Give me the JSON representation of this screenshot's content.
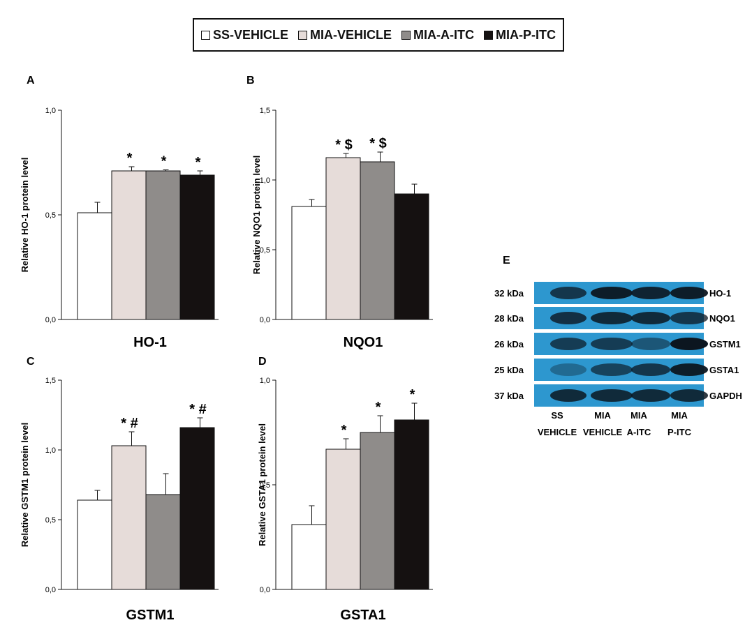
{
  "legend": [
    {
      "label": "SS-VEHICLE",
      "color": "#ffffff"
    },
    {
      "label": "MIA-VEHICLE",
      "color": "#e6dcd9"
    },
    {
      "label": "MIA-A-ITC",
      "color": "#8f8c8a"
    },
    {
      "label": "MIA-P-ITC",
      "color": "#151111"
    }
  ],
  "chart_data": [
    {
      "type": "bar",
      "panel_letter": "A",
      "title": "HO-1",
      "ylabel": "Relative HO-1 protein level",
      "ylim": [
        0,
        1.0
      ],
      "yticks": [
        "0,0",
        "0,5",
        "1,0"
      ],
      "categories": [
        "SS-VEHICLE",
        "MIA-VEHICLE",
        "MIA-A-ITC",
        "MIA-P-ITC"
      ],
      "values": [
        0.51,
        0.71,
        0.71,
        0.69
      ],
      "errors": [
        0.05,
        0.02,
        0.005,
        0.02
      ],
      "annotations": [
        "",
        "*",
        "*",
        "*"
      ]
    },
    {
      "type": "bar",
      "panel_letter": "B",
      "title": "NQO1",
      "ylabel": "Relative NQO1 protein level",
      "ylim": [
        0,
        1.5
      ],
      "yticks": [
        "0,0",
        "0,5",
        "1,0",
        "1,5"
      ],
      "categories": [
        "SS-VEHICLE",
        "MIA-VEHICLE",
        "MIA-A-ITC",
        "MIA-P-ITC"
      ],
      "values": [
        0.81,
        1.16,
        1.13,
        0.9
      ],
      "errors": [
        0.05,
        0.03,
        0.07,
        0.07
      ],
      "annotations": [
        "",
        "*$",
        "*$",
        ""
      ]
    },
    {
      "type": "bar",
      "panel_letter": "C",
      "title": "GSTM1",
      "ylabel": "Relative GSTM1 protein level",
      "ylim": [
        0,
        1.5
      ],
      "yticks": [
        "0,0",
        "0,5",
        "1,0",
        "1,5"
      ],
      "categories": [
        "SS-VEHICLE",
        "MIA-VEHICLE",
        "MIA-A-ITC",
        "MIA-P-ITC"
      ],
      "values": [
        0.64,
        1.03,
        0.68,
        1.16
      ],
      "errors": [
        0.07,
        0.1,
        0.15,
        0.07
      ],
      "annotations": [
        "",
        "*#",
        "",
        "*#"
      ]
    },
    {
      "type": "bar",
      "panel_letter": "D",
      "title": "GSTA1",
      "ylabel": "Relative GSTA1 protein level",
      "ylim": [
        0,
        1.0
      ],
      "yticks": [
        "0,0",
        "0,5",
        "1,0"
      ],
      "categories": [
        "SS-VEHICLE",
        "MIA-VEHICLE",
        "MIA-A-ITC",
        "MIA-P-ITC"
      ],
      "values": [
        0.31,
        0.67,
        0.75,
        0.81
      ],
      "errors": [
        0.09,
        0.05,
        0.08,
        0.08
      ],
      "annotations": [
        "",
        "*",
        "*",
        "*"
      ]
    }
  ],
  "blot": {
    "panel_letter": "E",
    "rows": [
      {
        "kda": "32 kDa",
        "protein": "HO-1"
      },
      {
        "kda": "28 kDa",
        "protein": "NQO1"
      },
      {
        "kda": "26 kDa",
        "protein": "GSTM1"
      },
      {
        "kda": "25 kDa",
        "protein": "GSTA1"
      },
      {
        "kda": "37 kDa",
        "protein": "GAPDH"
      }
    ],
    "lanes": [
      {
        "line1": "SS",
        "line2": "VEHICLE"
      },
      {
        "line1": "MIA",
        "line2": "VEHICLE"
      },
      {
        "line1": "MIA",
        "line2": "A-ITC"
      },
      {
        "line1": "MIA",
        "line2": "P-ITC"
      }
    ],
    "background_color": "#2d97cf",
    "band_color": "#0c1620"
  }
}
